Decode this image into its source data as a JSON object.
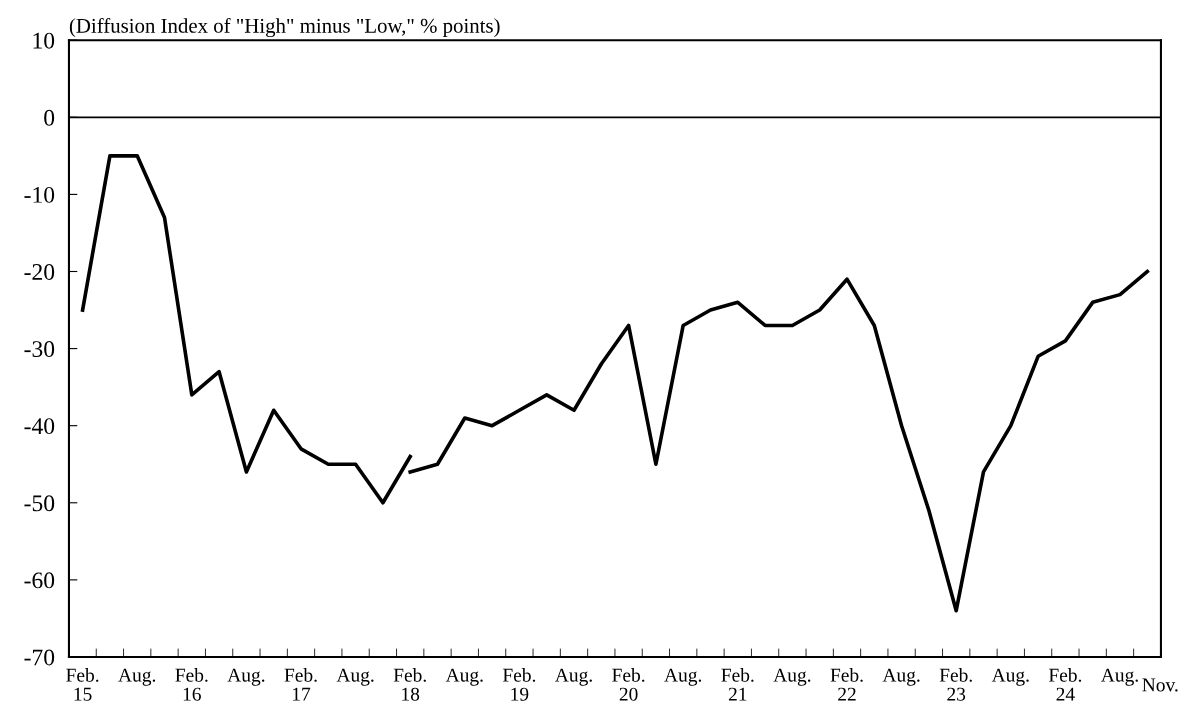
{
  "chart_data": {
    "type": "line",
    "ylabel": "(Diffusion Index of \"High\" minus \"Low,\" % points)",
    "categories": [
      "Feb.\n15",
      null,
      "Aug.",
      null,
      "Feb.\n16",
      null,
      "Aug.",
      null,
      "Feb.\n17",
      null,
      "Aug.",
      null,
      "Feb.\n18",
      null,
      "Aug.",
      null,
      "Feb.\n19",
      null,
      "Aug.",
      null,
      "Feb.\n20",
      null,
      "Aug.",
      null,
      "Feb.\n21",
      null,
      "Aug.",
      null,
      "Feb.\n22",
      null,
      "Aug.",
      null,
      "Feb.\n23",
      null,
      "Aug.",
      null,
      "Feb.\n24",
      null,
      "Aug.",
      "Nov."
    ],
    "series": [
      {
        "color": "#000000",
        "values": [
          -25,
          -5,
          -5,
          -13,
          -36,
          -33,
          -46,
          -38,
          -43,
          -45,
          -45,
          -50,
          -44,
          null,
          null,
          null,
          null,
          null,
          null,
          null,
          null,
          null,
          null,
          null,
          null,
          null,
          null,
          null,
          null,
          null,
          null,
          null,
          null,
          null,
          null,
          null,
          null,
          null,
          null,
          null
        ]
      },
      {
        "color": "#000000",
        "values": [
          null,
          null,
          null,
          null,
          null,
          null,
          null,
          null,
          null,
          null,
          null,
          null,
          -46,
          -45,
          -39,
          -40,
          -38,
          -36,
          -38,
          -32,
          -27,
          -45,
          -27,
          -25,
          -24,
          -27,
          -27,
          -25,
          -21,
          -27,
          -40,
          -51,
          -64,
          -46,
          -40,
          -31,
          -29,
          -24,
          -23,
          -20
        ]
      }
    ],
    "ylim": [
      -70,
      10
    ],
    "yticks": [
      -70,
      -60,
      -50,
      -40,
      -30,
      -20,
      -10,
      0,
      10
    ],
    "ref_lines": [
      {
        "axis": "y",
        "value": 0,
        "color": "#000000",
        "line_style": "solid"
      }
    ],
    "grid": false,
    "legend": false,
    "marker": "none",
    "line_style": "solid"
  }
}
